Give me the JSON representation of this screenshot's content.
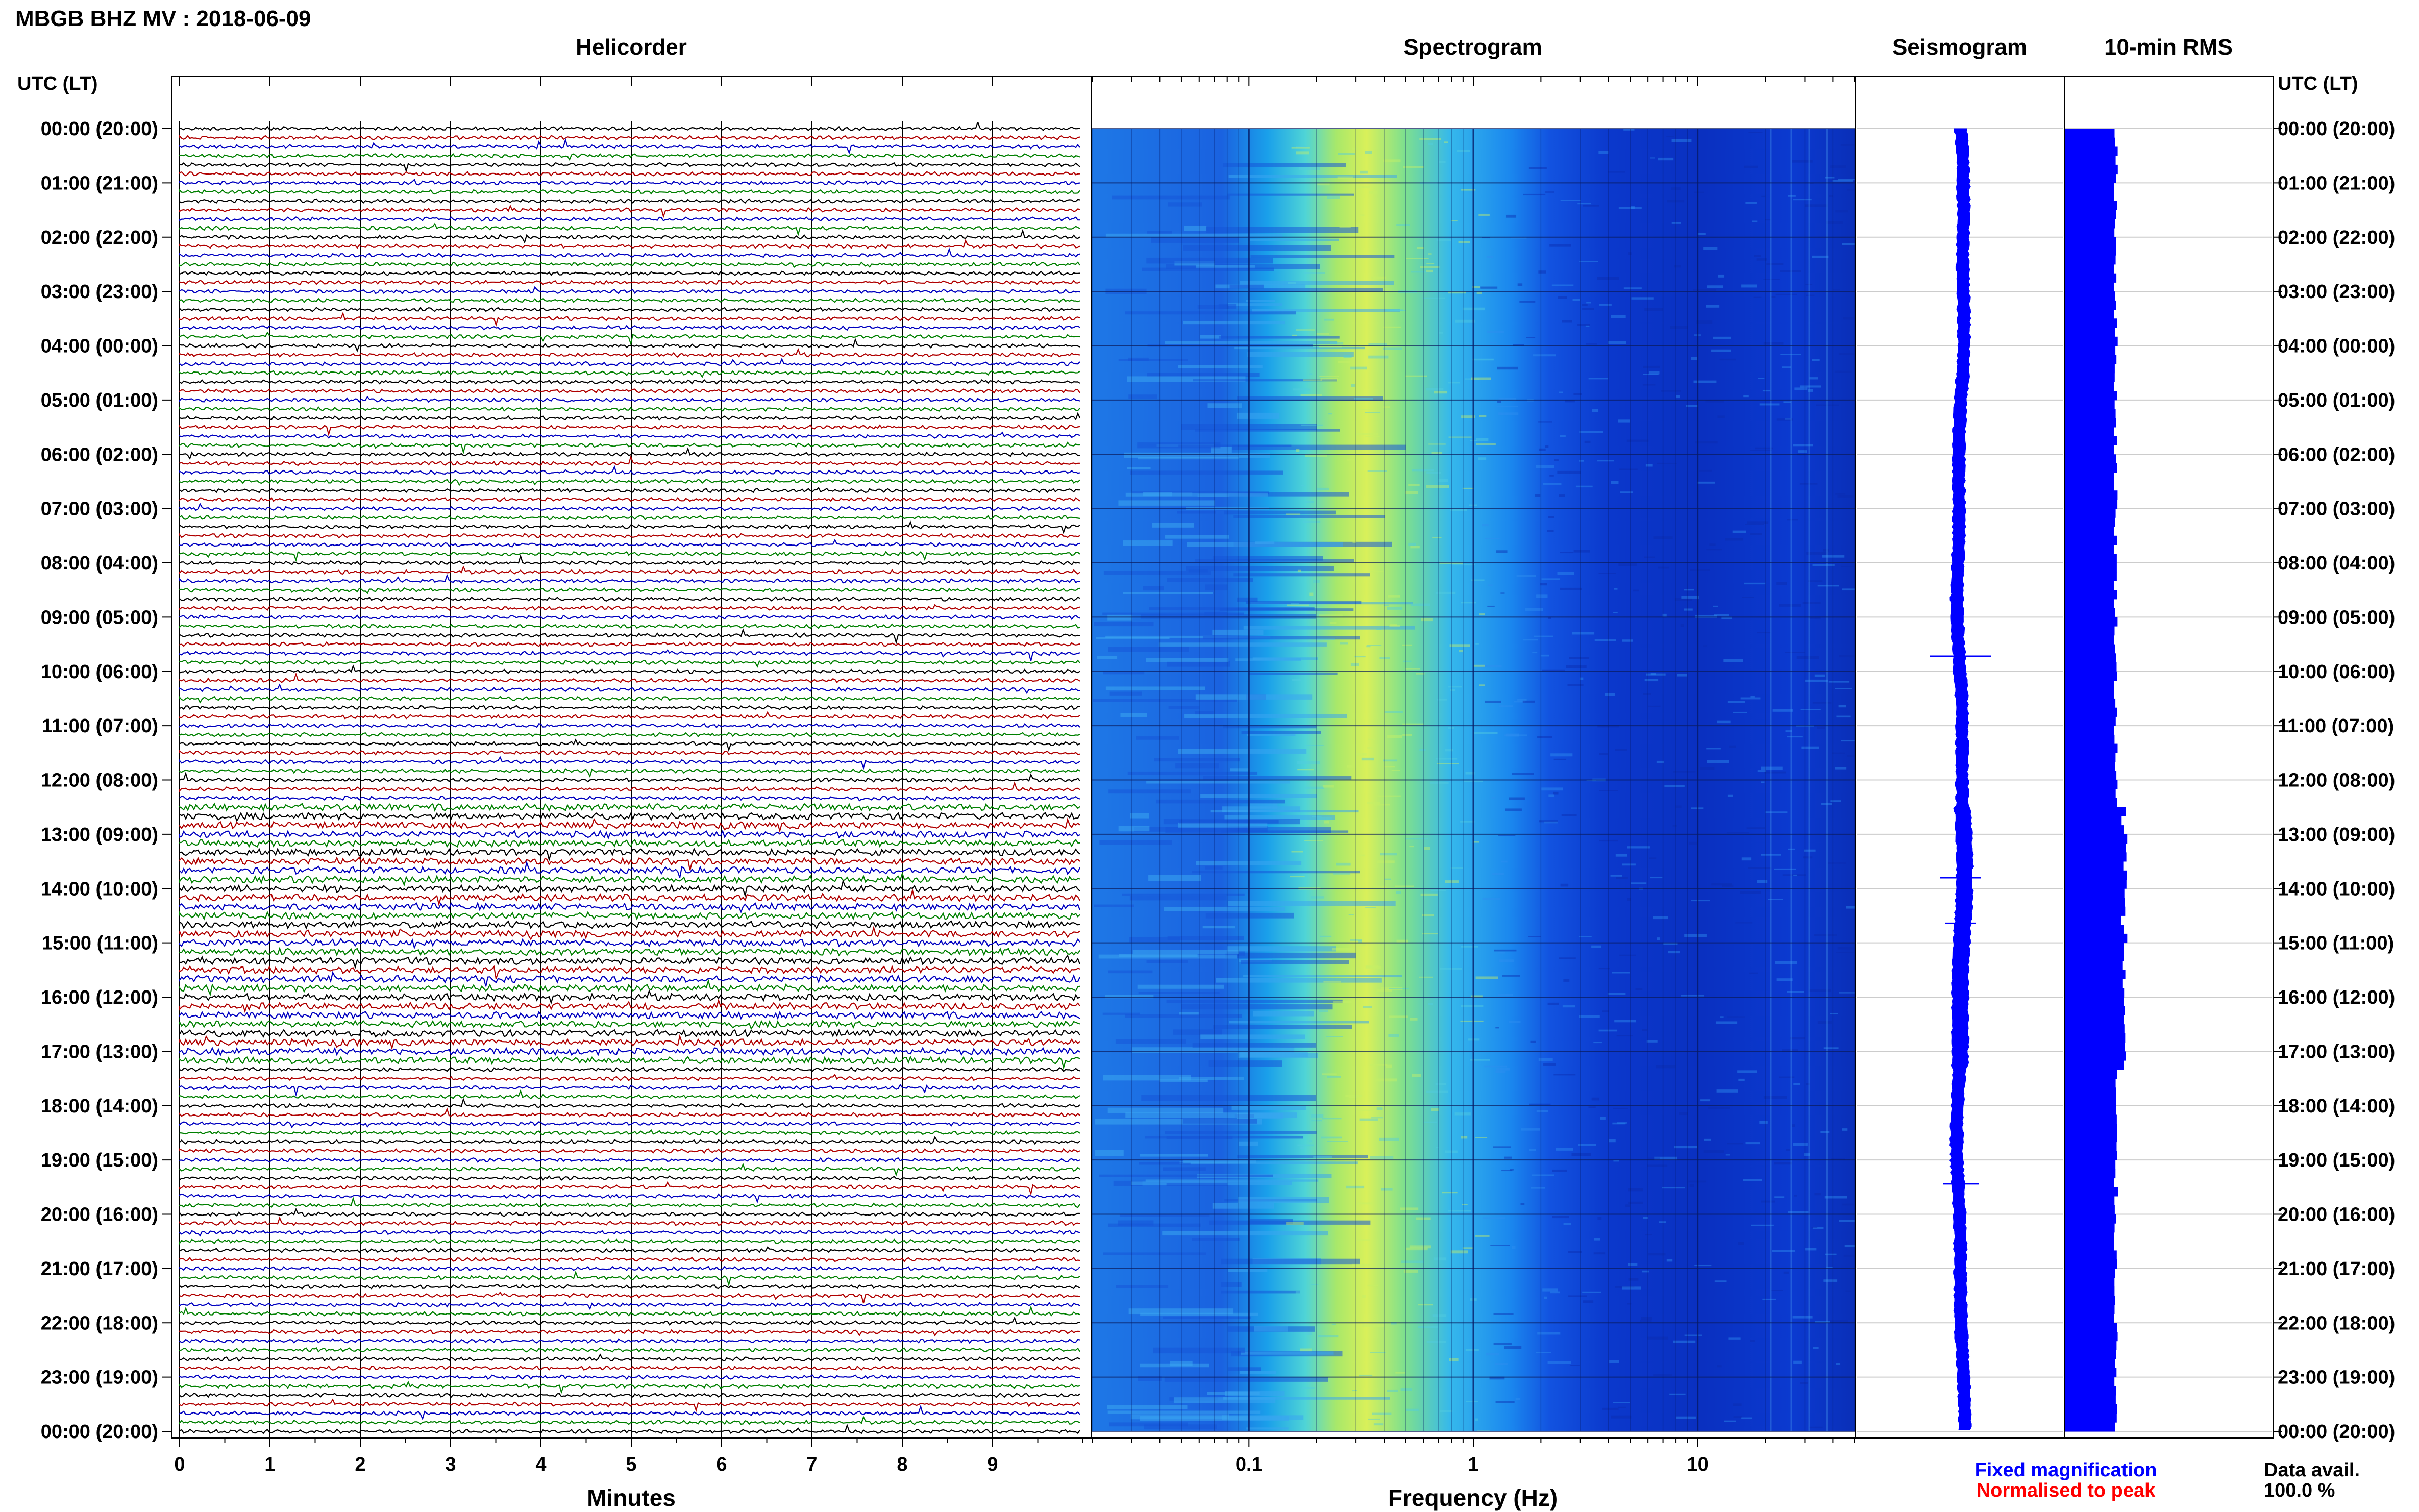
{
  "header": {
    "title": "MBGB BHZ MV : 2018-06-09",
    "utc_label_left": "UTC (LT)",
    "utc_label_right": "UTC (LT)"
  },
  "panels": {
    "helicorder": "Helicorder",
    "spectrogram": "Spectrogram",
    "seismogram": "Seismogram",
    "rms": "10-min RMS"
  },
  "footer": {
    "legend_fixed": "Fixed magnification",
    "legend_normalised": "Normalised to peak",
    "data_avail_label": "Data avail.",
    "data_avail_value": "100.0 %"
  },
  "colors": {
    "trace_black": "#000000",
    "trace_red": "#b00000",
    "trace_blue": "#0000c0",
    "trace_green": "#008000",
    "legend_fixed": "#0000ff",
    "legend_normalised": "#ff0000",
    "rms_fill": "#0000ff",
    "seismogram": "#0000ff"
  },
  "chart_data": [
    {
      "type": "line",
      "panel": "helicorder",
      "xlabel": "Minutes",
      "x_ticks": [
        "0",
        "1",
        "2",
        "3",
        "4",
        "5",
        "6",
        "7",
        "8",
        "9"
      ],
      "xlim": [
        0,
        10
      ],
      "y_ticks": [
        "00:00 (20:00)",
        "01:00 (21:00)",
        "02:00 (22:00)",
        "03:00 (23:00)",
        "04:00 (00:00)",
        "05:00 (01:00)",
        "06:00 (02:00)",
        "07:00 (03:00)",
        "08:00 (04:00)",
        "09:00 (05:00)",
        "10:00 (06:00)",
        "11:00 (07:00)",
        "12:00 (08:00)",
        "13:00 (09:00)",
        "14:00 (10:00)",
        "15:00 (11:00)",
        "16:00 (12:00)",
        "17:00 (13:00)",
        "18:00 (14:00)",
        "19:00 (15:00)",
        "20:00 (16:00)",
        "21:00 (17:00)",
        "22:00 (18:00)",
        "23:00 (19:00)",
        "00:00 (20:00)"
      ],
      "lines_per_hour": 6,
      "line_colors": [
        "black",
        "red",
        "blue",
        "green"
      ]
    },
    {
      "type": "heatmap",
      "panel": "spectrogram",
      "xlabel": "Frequency (Hz)",
      "x_scale": "log",
      "x_ticks": [
        0.1,
        1,
        10
      ],
      "x_tick_labels": [
        "0.1",
        "1",
        "10"
      ],
      "xlim": [
        0.02,
        50
      ]
    },
    {
      "type": "line",
      "panel": "seismogram"
    },
    {
      "type": "bar",
      "panel": "rms",
      "orientation": "horizontal",
      "interval_minutes": 10
    }
  ]
}
